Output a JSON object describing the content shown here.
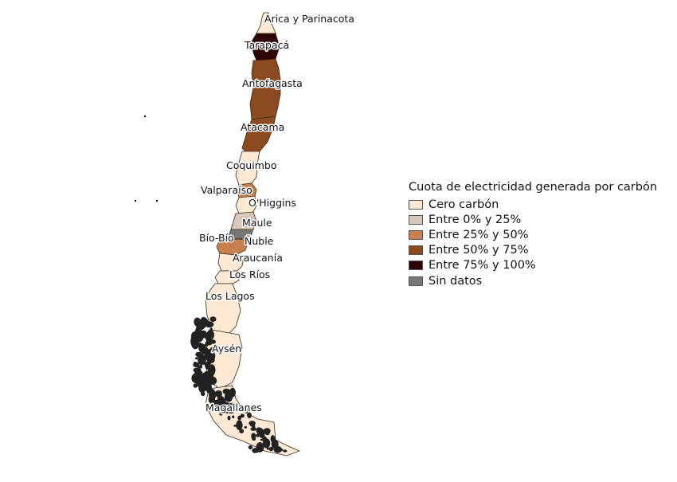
{
  "colors": {
    "cero": "#fde9d3",
    "q1": "#d8c6b8",
    "q2": "#c7814f",
    "q3": "#8b4a1f",
    "q4": "#2e0306",
    "nodata": "#777777",
    "border": "#3a2a1a",
    "coast_islands": "#222222"
  },
  "legend": {
    "title": "Cuota de electricidad generada por carbón",
    "items": [
      {
        "label": "Cero carbón",
        "category": "cero"
      },
      {
        "label": "Entre 0% y 25%",
        "category": "q1"
      },
      {
        "label": "Entre 25% y 50%",
        "category": "q2"
      },
      {
        "label": "Entre 50% y 75%",
        "category": "q3"
      },
      {
        "label": "Entre 75% y 100%",
        "category": "q4"
      },
      {
        "label": "Sin datos",
        "category": "nodata"
      }
    ]
  },
  "regions": [
    {
      "name": "Arica y Parinacota",
      "category": "cero"
    },
    {
      "name": "Tarapacá",
      "category": "q4"
    },
    {
      "name": "Antofagasta",
      "category": "q3"
    },
    {
      "name": "Atacama",
      "category": "q3"
    },
    {
      "name": "Coquimbo",
      "category": "cero"
    },
    {
      "name": "Valparaíso",
      "category": "q2"
    },
    {
      "name": "O'Higgins",
      "category": "cero"
    },
    {
      "name": "Maule",
      "category": "q1"
    },
    {
      "name": "Ñuble",
      "category": "nodata"
    },
    {
      "name": "Bío-Bío",
      "category": "q2"
    },
    {
      "name": "Araucanía",
      "category": "cero"
    },
    {
      "name": "Los Ríos",
      "category": "cero"
    },
    {
      "name": "Los Lagos",
      "category": "cero"
    },
    {
      "name": "Aysén",
      "category": "cero"
    },
    {
      "name": "Magallanes",
      "category": "cero"
    }
  ]
}
